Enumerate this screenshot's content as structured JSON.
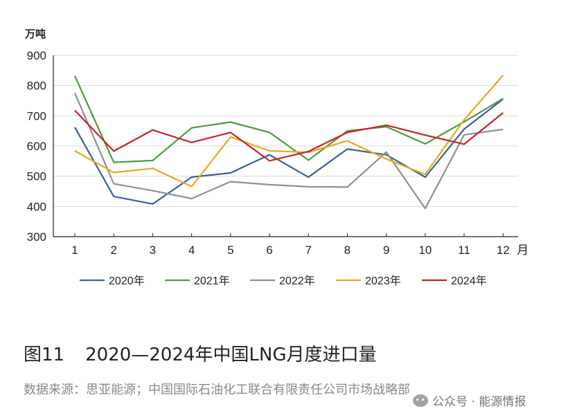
{
  "chart_data": {
    "type": "line",
    "y_unit": "万吨",
    "x_unit": "月",
    "categories": [
      "1",
      "2",
      "3",
      "4",
      "5",
      "6",
      "7",
      "8",
      "9",
      "10",
      "11",
      "12"
    ],
    "ylim": [
      300,
      900
    ],
    "yticks": [
      300,
      400,
      500,
      600,
      700,
      800,
      900
    ],
    "grid": true,
    "legend_position": "bottom",
    "series": [
      {
        "name": "2020年",
        "color": "#3a5f9a",
        "values": [
          662,
          433,
          408,
          497,
          511,
          571,
          497,
          590,
          571,
          497,
          656,
          755
        ]
      },
      {
        "name": "2021年",
        "color": "#4e9a3c",
        "values": [
          832,
          546,
          552,
          660,
          679,
          645,
          553,
          650,
          664,
          607,
          680,
          757
        ]
      },
      {
        "name": "2022年",
        "color": "#8f8f8f",
        "values": [
          775,
          475,
          452,
          426,
          482,
          472,
          465,
          464,
          580,
          393,
          637,
          655
        ]
      },
      {
        "name": "2023年",
        "color": "#e5a81e",
        "values": [
          584,
          512,
          526,
          466,
          630,
          584,
          579,
          617,
          557,
          506,
          687,
          834
        ]
      },
      {
        "name": "2024年",
        "color": "#cc1f2a",
        "values": [
          718,
          583,
          653,
          612,
          645,
          551,
          582,
          645,
          669,
          636,
          606,
          710
        ]
      }
    ]
  },
  "caption": {
    "number": "图11",
    "title": "2020—2024年中国LNG月度进口量"
  },
  "source": "数据来源：思亚能源；中国国际石油化工联合有限责任公司市场战略部",
  "watermark": {
    "icon": "wechat-icon",
    "text": "公众号 · 能源情报"
  }
}
